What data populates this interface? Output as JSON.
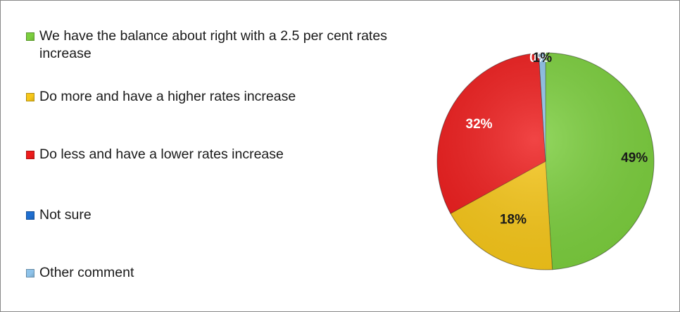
{
  "chart_data": {
    "type": "pie",
    "title": "",
    "legend_position": "left",
    "labels": [
      "We have the balance about right with a 2.5 per cent rates increase",
      "Do more and have a higher rates increase",
      "Do less and have a lower rates increase",
      "Not sure",
      "Other comment"
    ],
    "values": [
      49,
      18,
      32,
      0,
      1
    ],
    "data_labels": [
      "49%",
      "18%",
      "32%",
      "0%",
      "1%"
    ],
    "colors": [
      "#7ccf3e",
      "#f7c719",
      "#ee1c1c",
      "#1f6fd1",
      "#8ec3ea"
    ],
    "label_colors": [
      "#1a1a1a",
      "#1a1a1a",
      "#ffffff",
      "#ffffff",
      "#1a1a1a"
    ]
  }
}
